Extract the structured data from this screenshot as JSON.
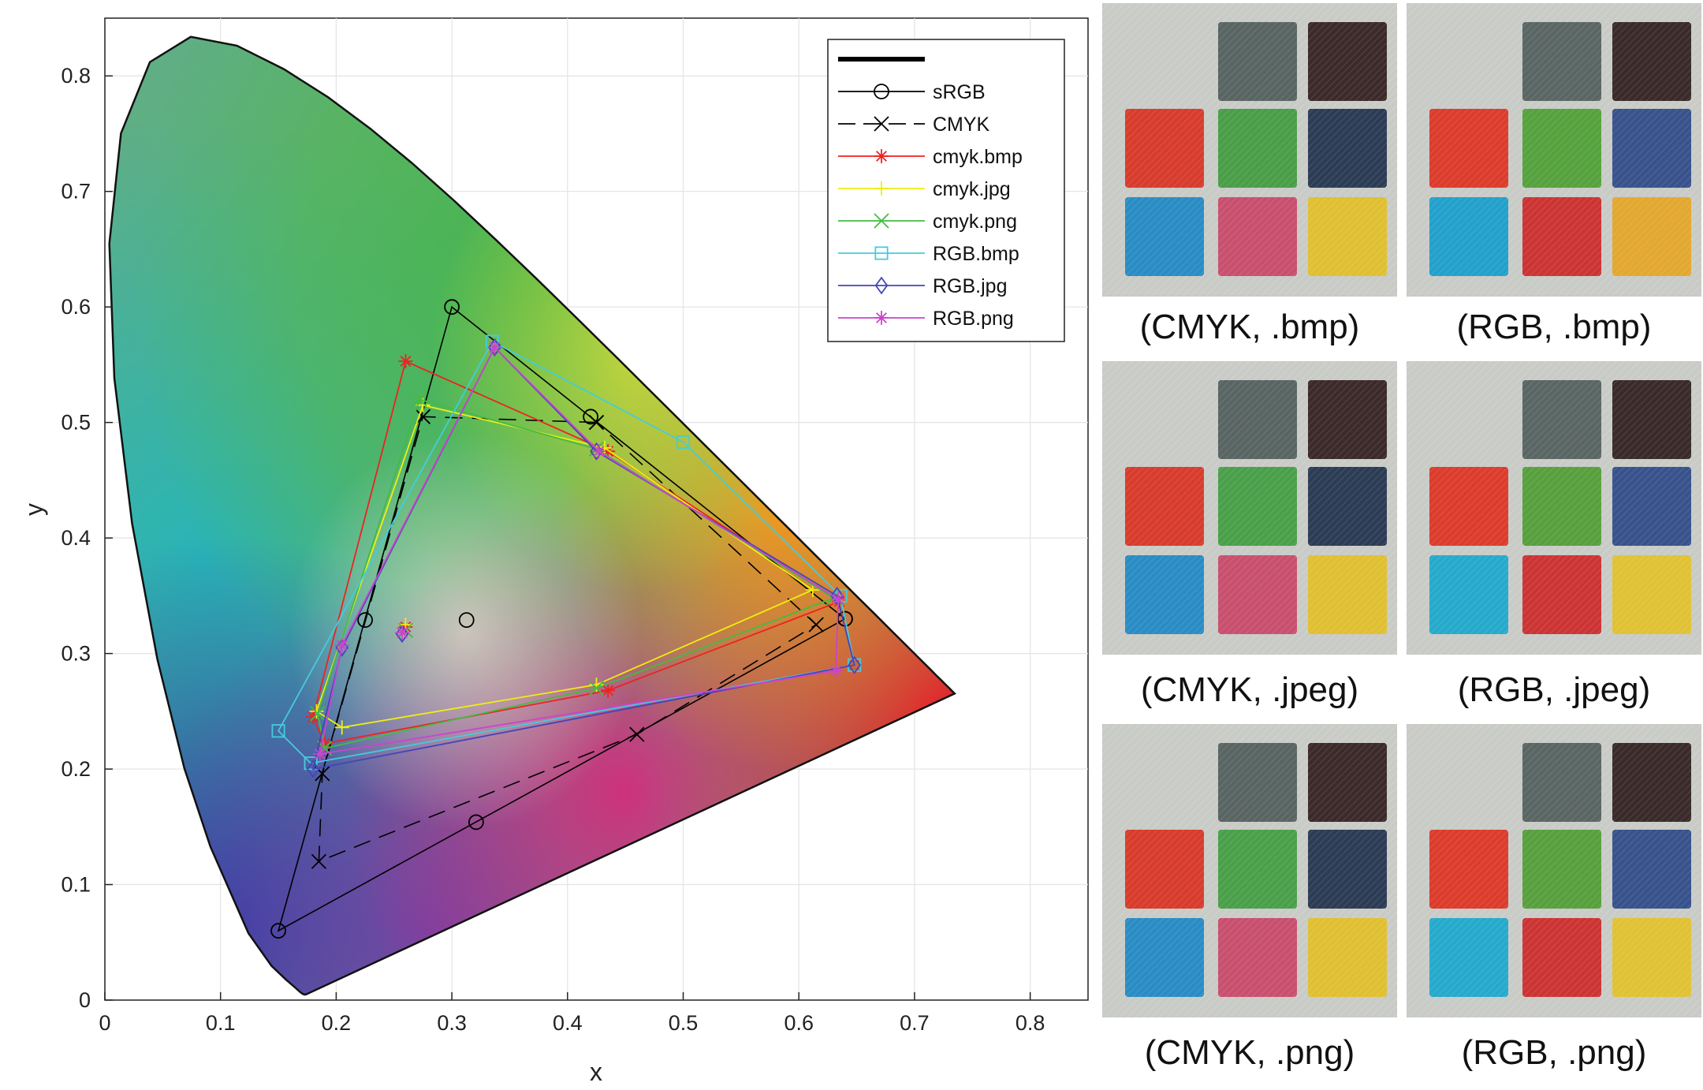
{
  "chart_data": {
    "type": "scatter",
    "title": "",
    "xlabel": "x",
    "ylabel": "y",
    "xlim": [
      0,
      0.85
    ],
    "ylim": [
      0,
      0.85
    ],
    "xticks": [
      "0",
      "0.1",
      "0.2",
      "0.3",
      "0.4",
      "0.5",
      "0.6",
      "0.7",
      "0.8"
    ],
    "yticks": [
      "0",
      "0.1",
      "0.2",
      "0.3",
      "0.4",
      "0.5",
      "0.6",
      "0.7",
      "0.8"
    ],
    "grid": true,
    "legend_position": "top-right",
    "background": "CIE 1931 chromaticity diagram (spectral locus filled with colors)",
    "series": [
      {
        "name": "",
        "color": "#000000",
        "marker": "none",
        "line": "solid-thick",
        "x": [],
        "y": []
      },
      {
        "name": "sRGB",
        "color": "#000000",
        "marker": "circle",
        "line": "solid",
        "x": [
          0.64,
          0.3,
          0.15,
          0.64
        ],
        "y": [
          0.33,
          0.6,
          0.06,
          0.33
        ],
        "extra_points": {
          "x": [
            0.225,
            0.3127,
            0.42,
            0.321
          ],
          "y": [
            0.329,
            0.329,
            0.505,
            0.154
          ]
        }
      },
      {
        "name": "CMYK",
        "color": "#000000",
        "marker": "x",
        "line": "dashed",
        "x": [
          0.425,
          0.275,
          0.188,
          0.185,
          0.46,
          0.615,
          0.425
        ],
        "y": [
          0.5,
          0.505,
          0.196,
          0.12,
          0.23,
          0.325,
          0.5
        ]
      },
      {
        "name": "cmyk.bmp",
        "color": "#ee2222",
        "marker": "asterisk",
        "line": "solid",
        "x": [
          0.435,
          0.26,
          0.18,
          0.19,
          0.435,
          0.635,
          0.435
        ],
        "y": [
          0.475,
          0.553,
          0.245,
          0.222,
          0.268,
          0.345,
          0.475
        ],
        "extra_points": {
          "x": [
            0.26
          ],
          "y": [
            0.323
          ]
        }
      },
      {
        "name": "cmyk.jpg",
        "color": "#eeee11",
        "marker": "plus",
        "line": "solid",
        "x": [
          0.432,
          0.275,
          0.183,
          0.205,
          0.425,
          0.612,
          0.432
        ],
        "y": [
          0.478,
          0.515,
          0.25,
          0.236,
          0.273,
          0.355,
          0.478
        ],
        "extra_points": {
          "x": [
            0.26
          ],
          "y": [
            0.325
          ]
        }
      },
      {
        "name": "cmyk.png",
        "color": "#44bb44",
        "marker": "x",
        "line": "solid",
        "x": [
          0.425,
          0.272,
          0.184,
          0.19,
          0.425,
          0.63,
          0.425
        ],
        "y": [
          0.477,
          0.52,
          0.248,
          0.218,
          0.27,
          0.348,
          0.477
        ],
        "extra_points": {
          "x": [
            0.26
          ],
          "y": [
            0.32
          ]
        }
      },
      {
        "name": "RGB.bmp",
        "color": "#44ccdd",
        "marker": "square",
        "line": "solid",
        "x": [
          0.335,
          0.15,
          0.178,
          0.648,
          0.636,
          0.5,
          0.335
        ],
        "y": [
          0.57,
          0.233,
          0.205,
          0.29,
          0.35,
          0.483,
          0.57
        ]
      },
      {
        "name": "RGB.jpg",
        "color": "#4444bb",
        "marker": "diamond",
        "line": "solid",
        "x": [
          0.337,
          0.205,
          0.18,
          0.648,
          0.633,
          0.425,
          0.337
        ],
        "y": [
          0.565,
          0.305,
          0.2,
          0.29,
          0.35,
          0.475,
          0.565
        ],
        "extra_points": {
          "x": [
            0.257
          ],
          "y": [
            0.317
          ]
        }
      },
      {
        "name": "RGB.png",
        "color": "#cc44cc",
        "marker": "asterisk",
        "line": "solid",
        "x": [
          0.337,
          0.205,
          0.186,
          0.632,
          0.634,
          0.427,
          0.337
        ],
        "y": [
          0.565,
          0.307,
          0.213,
          0.285,
          0.347,
          0.475,
          0.565
        ],
        "extra_points": {
          "x": [
            0.257
          ],
          "y": [
            0.318
          ]
        }
      }
    ]
  },
  "photos": [
    {
      "caption": "(CMYK, .bmp)",
      "swatches": [
        "#c9cbc7",
        "#596563",
        "#3c2a2a",
        "#d83c2c",
        "#4a9e48",
        "#2c3c54",
        "#2a8cc4",
        "#c8506e",
        "#e0c032"
      ]
    },
    {
      "caption": "(RGB, .bmp)",
      "swatches": [
        "#c9cbc7",
        "#5a6664",
        "#3a2a2a",
        "#dc3c2c",
        "#56a23e",
        "#38528c",
        "#23a0cc",
        "#cc3434",
        "#e2a830"
      ]
    },
    {
      "caption": "(CMYK, .jpeg)",
      "swatches": [
        "#c9cbc7",
        "#596563",
        "#3c2a2a",
        "#d83c2c",
        "#4aa04a",
        "#2c3c54",
        "#2a8cc4",
        "#c8506e",
        "#e0c032"
      ]
    },
    {
      "caption": "(RGB, .jpeg)",
      "swatches": [
        "#c9cbc7",
        "#5a6664",
        "#3a2a2a",
        "#dc3c2c",
        "#58a03e",
        "#38528c",
        "#26aacc",
        "#cc3434",
        "#e0c234"
      ]
    },
    {
      "caption": "(CMYK, .png)",
      "swatches": [
        "#c9cbc7",
        "#596563",
        "#3c2a2a",
        "#d83c2c",
        "#4aa04a",
        "#2c3c54",
        "#2a8cc4",
        "#c8506e",
        "#e0c032"
      ]
    },
    {
      "caption": "(RGB, .png)",
      "swatches": [
        "#c9cbc7",
        "#5a6664",
        "#3a2a2a",
        "#dc3c2c",
        "#58a03e",
        "#38528c",
        "#26aacc",
        "#cc3434",
        "#e0c234"
      ]
    }
  ]
}
